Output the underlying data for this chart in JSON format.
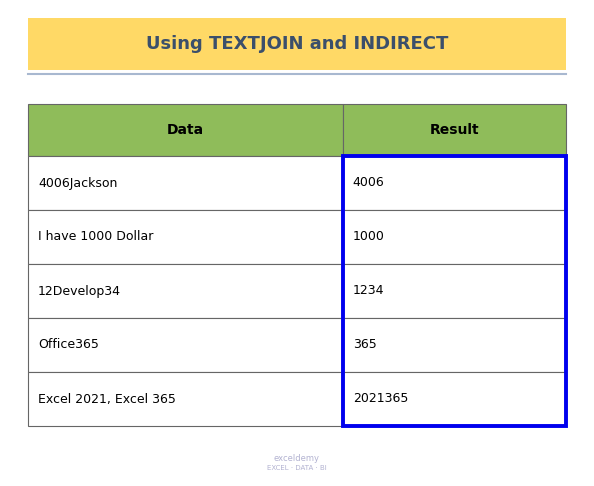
{
  "title": "Using TEXTJOIN and INDIRECT",
  "title_bg_color": "#FFD966",
  "title_text_color": "#3B4F6B",
  "title_fontsize": 13,
  "header_bg_color": "#8FBC5A",
  "header_text_color": "#000000",
  "header_fontsize": 10,
  "cell_bg_color": "#FFFFFF",
  "cell_text_color": "#000000",
  "cell_fontsize": 9,
  "col_headers": [
    "Data",
    "Result"
  ],
  "rows": [
    [
      "4006Jackson",
      "4006"
    ],
    [
      "I have 1000 Dollar",
      "1000"
    ],
    [
      "12Develop34",
      "1234"
    ],
    [
      "Office365",
      "365"
    ],
    [
      "Excel 2021, Excel 365",
      "2021365"
    ]
  ],
  "result_highlight_color": "#0000EE",
  "result_highlight_lw": 2.8,
  "table_border_color": "#666666",
  "table_border_lw": 0.8,
  "watermark_line1": "exceldemy",
  "watermark_line2": "EXCEL · DATA · BI",
  "watermark_color": "#AAAACC",
  "fig_bg_color": "#FFFFFF",
  "fig_w": 5.94,
  "fig_h": 4.86,
  "dpi": 100
}
